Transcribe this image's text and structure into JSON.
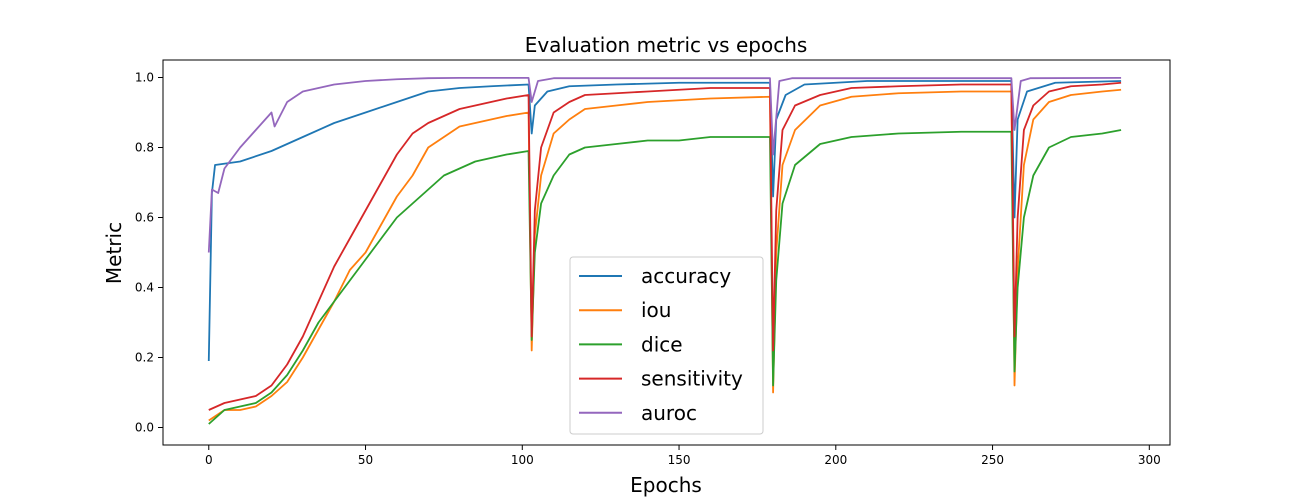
{
  "chart_data": {
    "type": "line",
    "title": "Evaluation metric vs epochs",
    "xlabel": "Epochs",
    "ylabel": "Metric",
    "xlim": [
      -14.6,
      306.6
    ],
    "ylim": [
      -0.05,
      1.05
    ],
    "xticks": [
      0,
      50,
      100,
      150,
      200,
      250,
      300
    ],
    "yticks": [
      0.0,
      0.2,
      0.4,
      0.6,
      0.8,
      1.0
    ],
    "xtick_labels": [
      "0",
      "50",
      "100",
      "150",
      "200",
      "250",
      "300"
    ],
    "ytick_labels": [
      "0.0",
      "0.2",
      "0.4",
      "0.6",
      "0.8",
      "1.0"
    ],
    "grid": false,
    "legend_position": "lower-center",
    "series": [
      {
        "name": "accuracy",
        "color": "#1f77b4",
        "points": [
          [
            0,
            0.19
          ],
          [
            1,
            0.67
          ],
          [
            2,
            0.75
          ],
          [
            10,
            0.76
          ],
          [
            20,
            0.79
          ],
          [
            30,
            0.83
          ],
          [
            40,
            0.87
          ],
          [
            50,
            0.9
          ],
          [
            60,
            0.93
          ],
          [
            70,
            0.96
          ],
          [
            80,
            0.97
          ],
          [
            90,
            0.975
          ],
          [
            102,
            0.98
          ],
          [
            103,
            0.84
          ],
          [
            104,
            0.92
          ],
          [
            108,
            0.96
          ],
          [
            115,
            0.975
          ],
          [
            130,
            0.98
          ],
          [
            150,
            0.985
          ],
          [
            179,
            0.985
          ],
          [
            180,
            0.66
          ],
          [
            181,
            0.88
          ],
          [
            184,
            0.95
          ],
          [
            190,
            0.98
          ],
          [
            210,
            0.99
          ],
          [
            240,
            0.99
          ],
          [
            256,
            0.99
          ],
          [
            257,
            0.6
          ],
          [
            258,
            0.88
          ],
          [
            261,
            0.96
          ],
          [
            270,
            0.985
          ],
          [
            291,
            0.99
          ]
        ]
      },
      {
        "name": "iou",
        "color": "#ff7f0e",
        "points": [
          [
            0,
            0.02
          ],
          [
            5,
            0.05
          ],
          [
            10,
            0.05
          ],
          [
            15,
            0.06
          ],
          [
            20,
            0.09
          ],
          [
            25,
            0.13
          ],
          [
            30,
            0.2
          ],
          [
            35,
            0.28
          ],
          [
            40,
            0.36
          ],
          [
            45,
            0.45
          ],
          [
            50,
            0.5
          ],
          [
            55,
            0.58
          ],
          [
            60,
            0.66
          ],
          [
            65,
            0.72
          ],
          [
            70,
            0.8
          ],
          [
            75,
            0.83
          ],
          [
            80,
            0.86
          ],
          [
            85,
            0.87
          ],
          [
            90,
            0.88
          ],
          [
            95,
            0.89
          ],
          [
            102,
            0.9
          ],
          [
            103,
            0.22
          ],
          [
            104,
            0.55
          ],
          [
            106,
            0.72
          ],
          [
            110,
            0.84
          ],
          [
            115,
            0.88
          ],
          [
            120,
            0.91
          ],
          [
            130,
            0.92
          ],
          [
            140,
            0.93
          ],
          [
            150,
            0.935
          ],
          [
            160,
            0.94
          ],
          [
            179,
            0.945
          ],
          [
            180,
            0.1
          ],
          [
            181,
            0.5
          ],
          [
            183,
            0.75
          ],
          [
            187,
            0.85
          ],
          [
            195,
            0.92
          ],
          [
            205,
            0.945
          ],
          [
            220,
            0.955
          ],
          [
            240,
            0.96
          ],
          [
            256,
            0.96
          ],
          [
            257,
            0.12
          ],
          [
            258,
            0.45
          ],
          [
            260,
            0.75
          ],
          [
            263,
            0.88
          ],
          [
            268,
            0.93
          ],
          [
            275,
            0.95
          ],
          [
            285,
            0.96
          ],
          [
            291,
            0.965
          ]
        ]
      },
      {
        "name": "dice",
        "color": "#2ca02c",
        "points": [
          [
            0,
            0.01
          ],
          [
            5,
            0.05
          ],
          [
            10,
            0.06
          ],
          [
            15,
            0.07
          ],
          [
            20,
            0.1
          ],
          [
            25,
            0.15
          ],
          [
            30,
            0.22
          ],
          [
            35,
            0.3
          ],
          [
            40,
            0.36
          ],
          [
            45,
            0.42
          ],
          [
            50,
            0.48
          ],
          [
            55,
            0.54
          ],
          [
            60,
            0.6
          ],
          [
            65,
            0.64
          ],
          [
            70,
            0.68
          ],
          [
            75,
            0.72
          ],
          [
            80,
            0.74
          ],
          [
            85,
            0.76
          ],
          [
            90,
            0.77
          ],
          [
            95,
            0.78
          ],
          [
            102,
            0.79
          ],
          [
            103,
            0.25
          ],
          [
            104,
            0.5
          ],
          [
            106,
            0.64
          ],
          [
            110,
            0.72
          ],
          [
            115,
            0.78
          ],
          [
            120,
            0.8
          ],
          [
            130,
            0.81
          ],
          [
            140,
            0.82
          ],
          [
            150,
            0.82
          ],
          [
            160,
            0.83
          ],
          [
            179,
            0.83
          ],
          [
            180,
            0.12
          ],
          [
            181,
            0.42
          ],
          [
            183,
            0.64
          ],
          [
            187,
            0.75
          ],
          [
            195,
            0.81
          ],
          [
            205,
            0.83
          ],
          [
            220,
            0.84
          ],
          [
            240,
            0.845
          ],
          [
            256,
            0.845
          ],
          [
            257,
            0.16
          ],
          [
            258,
            0.4
          ],
          [
            260,
            0.6
          ],
          [
            263,
            0.72
          ],
          [
            268,
            0.8
          ],
          [
            275,
            0.83
          ],
          [
            285,
            0.84
          ],
          [
            291,
            0.85
          ]
        ]
      },
      {
        "name": "sensitivity",
        "color": "#d62728",
        "points": [
          [
            0,
            0.05
          ],
          [
            5,
            0.07
          ],
          [
            10,
            0.08
          ],
          [
            15,
            0.09
          ],
          [
            20,
            0.12
          ],
          [
            25,
            0.18
          ],
          [
            30,
            0.26
          ],
          [
            35,
            0.36
          ],
          [
            40,
            0.46
          ],
          [
            45,
            0.54
          ],
          [
            50,
            0.62
          ],
          [
            55,
            0.7
          ],
          [
            60,
            0.78
          ],
          [
            65,
            0.84
          ],
          [
            70,
            0.87
          ],
          [
            75,
            0.89
          ],
          [
            80,
            0.91
          ],
          [
            85,
            0.92
          ],
          [
            90,
            0.93
          ],
          [
            95,
            0.94
          ],
          [
            102,
            0.95
          ],
          [
            103,
            0.26
          ],
          [
            104,
            0.62
          ],
          [
            106,
            0.8
          ],
          [
            110,
            0.9
          ],
          [
            115,
            0.93
          ],
          [
            120,
            0.95
          ],
          [
            130,
            0.955
          ],
          [
            140,
            0.96
          ],
          [
            150,
            0.965
          ],
          [
            160,
            0.97
          ],
          [
            179,
            0.97
          ],
          [
            180,
            0.22
          ],
          [
            181,
            0.62
          ],
          [
            183,
            0.85
          ],
          [
            187,
            0.92
          ],
          [
            195,
            0.95
          ],
          [
            205,
            0.97
          ],
          [
            220,
            0.975
          ],
          [
            240,
            0.98
          ],
          [
            256,
            0.98
          ],
          [
            257,
            0.26
          ],
          [
            258,
            0.6
          ],
          [
            260,
            0.85
          ],
          [
            263,
            0.92
          ],
          [
            268,
            0.96
          ],
          [
            275,
            0.975
          ],
          [
            285,
            0.98
          ],
          [
            291,
            0.985
          ]
        ]
      },
      {
        "name": "auroc",
        "color": "#9467bd",
        "points": [
          [
            0,
            0.5
          ],
          [
            1,
            0.68
          ],
          [
            3,
            0.67
          ],
          [
            5,
            0.74
          ],
          [
            10,
            0.8
          ],
          [
            15,
            0.85
          ],
          [
            20,
            0.9
          ],
          [
            21,
            0.86
          ],
          [
            25,
            0.93
          ],
          [
            30,
            0.96
          ],
          [
            40,
            0.98
          ],
          [
            50,
            0.99
          ],
          [
            60,
            0.995
          ],
          [
            70,
            0.998
          ],
          [
            80,
            0.999
          ],
          [
            102,
            0.999
          ],
          [
            103,
            0.93
          ],
          [
            105,
            0.99
          ],
          [
            110,
            0.998
          ],
          [
            179,
            0.998
          ],
          [
            180,
            0.78
          ],
          [
            182,
            0.99
          ],
          [
            186,
            0.998
          ],
          [
            256,
            0.998
          ],
          [
            257,
            0.85
          ],
          [
            259,
            0.99
          ],
          [
            262,
            0.998
          ],
          [
            291,
            0.999
          ]
        ]
      }
    ]
  }
}
